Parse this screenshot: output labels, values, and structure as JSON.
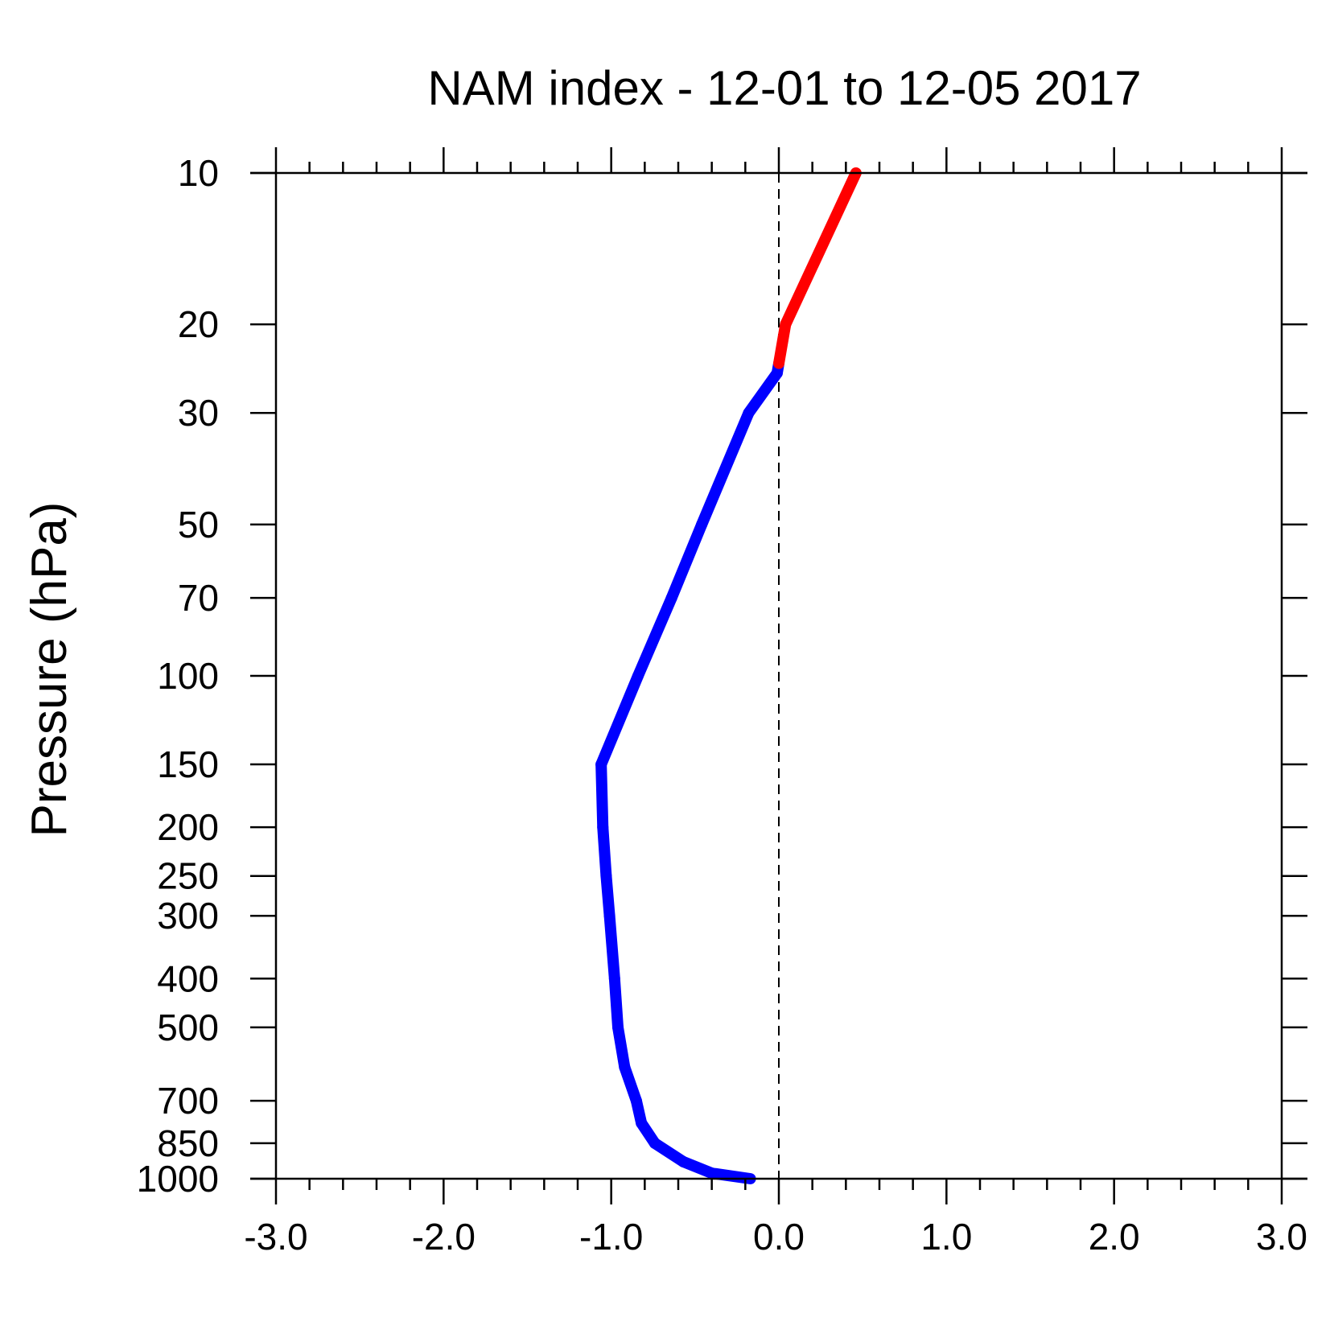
{
  "chart_data": {
    "type": "line",
    "title": "NAM index - 12-01 to 12-05 2017",
    "xlabel": "",
    "ylabel": "Pressure (hPa)",
    "xlim": [
      -3.0,
      3.0
    ],
    "ylim": [
      1000,
      10
    ],
    "y_scale": "log",
    "x_ticks": [
      "-3.0",
      "-2.0",
      "-1.0",
      "0.0",
      "1.0",
      "2.0",
      "3.0"
    ],
    "x_tick_values": [
      -3,
      -2,
      -1,
      0,
      1,
      2,
      3
    ],
    "y_ticks": [
      "10",
      "20",
      "30",
      "50",
      "70",
      "100",
      "150",
      "200",
      "250",
      "300",
      "400",
      "500",
      "700",
      "850",
      "1000"
    ],
    "y_tick_values": [
      10,
      20,
      30,
      50,
      70,
      100,
      150,
      200,
      250,
      300,
      400,
      500,
      700,
      850,
      1000
    ],
    "reference_line": {
      "x": 0.0,
      "style": "dashed"
    },
    "colors": {
      "positive": "#ff0000",
      "negative": "#0000ff"
    },
    "series": [
      {
        "pressure": [
          1000,
          975,
          925,
          850,
          775,
          700,
          600,
          500,
          400,
          300,
          250,
          200,
          150,
          100,
          70,
          50,
          30,
          25,
          20,
          10
        ],
        "values": [
          -0.17,
          -0.4,
          -0.57,
          -0.74,
          -0.82,
          -0.85,
          -0.92,
          -0.96,
          -0.98,
          -1.01,
          -1.03,
          -1.05,
          -1.06,
          -0.84,
          -0.64,
          -0.46,
          -0.18,
          -0.01,
          0.04,
          0.46
        ]
      }
    ]
  }
}
